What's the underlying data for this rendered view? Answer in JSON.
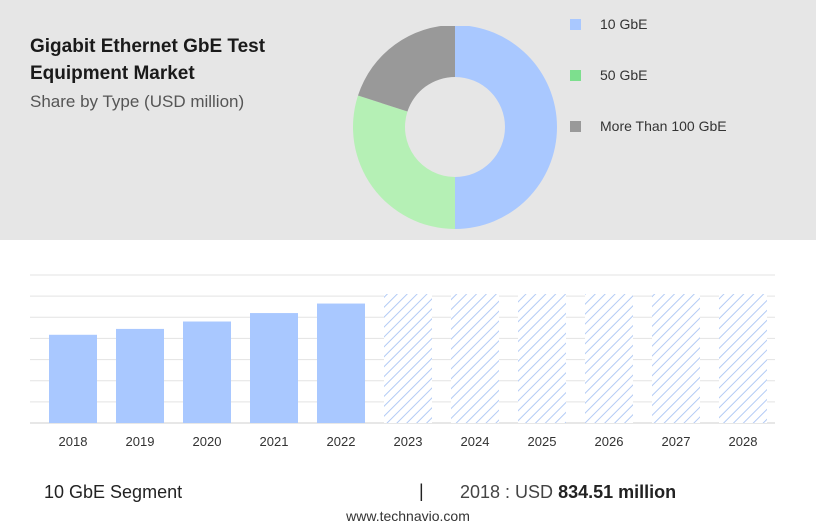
{
  "header": {
    "title": "Gigabit Ethernet GbE Test Equipment Market",
    "subtitle": "Share by Type (USD million)"
  },
  "colors": {
    "header_bg": "#e6e6e6",
    "bar_actual": "#a9c8ff",
    "bar_forecast_hatch": "#b3cbf5",
    "slice_10gbe": "#a9c8ff",
    "slice_50gbe": "#b5f0b5",
    "slice_100gbe": "#999999",
    "legend_10gbe": "#a9c8ff",
    "legend_50gbe": "#7ddf8e",
    "legend_100gbe": "#999999"
  },
  "chart_data": [
    {
      "type": "pie",
      "variant": "donut",
      "slices": [
        {
          "label": "10 GbE",
          "value": 50
        },
        {
          "label": "50 GbE",
          "value": 30
        },
        {
          "label": "More Than 100 GbE",
          "value": 20
        }
      ],
      "legend": [
        "10 GbE",
        "50 GbE",
        "More Than 100 GbE"
      ],
      "legend_position": "right"
    },
    {
      "type": "bar",
      "categories": [
        "2018",
        "2019",
        "2020",
        "2021",
        "2022",
        "2023",
        "2024",
        "2025",
        "2026",
        "2027",
        "2028"
      ],
      "values": [
        834.51,
        890,
        960,
        1040,
        1130,
        1220,
        1220,
        1220,
        1220,
        1220,
        1220
      ],
      "forecast": [
        false,
        false,
        false,
        false,
        false,
        true,
        true,
        true,
        true,
        true,
        true
      ],
      "ylim": [
        0,
        1400
      ],
      "grid": true
    }
  ],
  "footer": {
    "segment": "10 GbE Segment",
    "separator": "|",
    "year_label": "2018 : USD",
    "value": "834.51 million",
    "url": "www.technavio.com"
  }
}
